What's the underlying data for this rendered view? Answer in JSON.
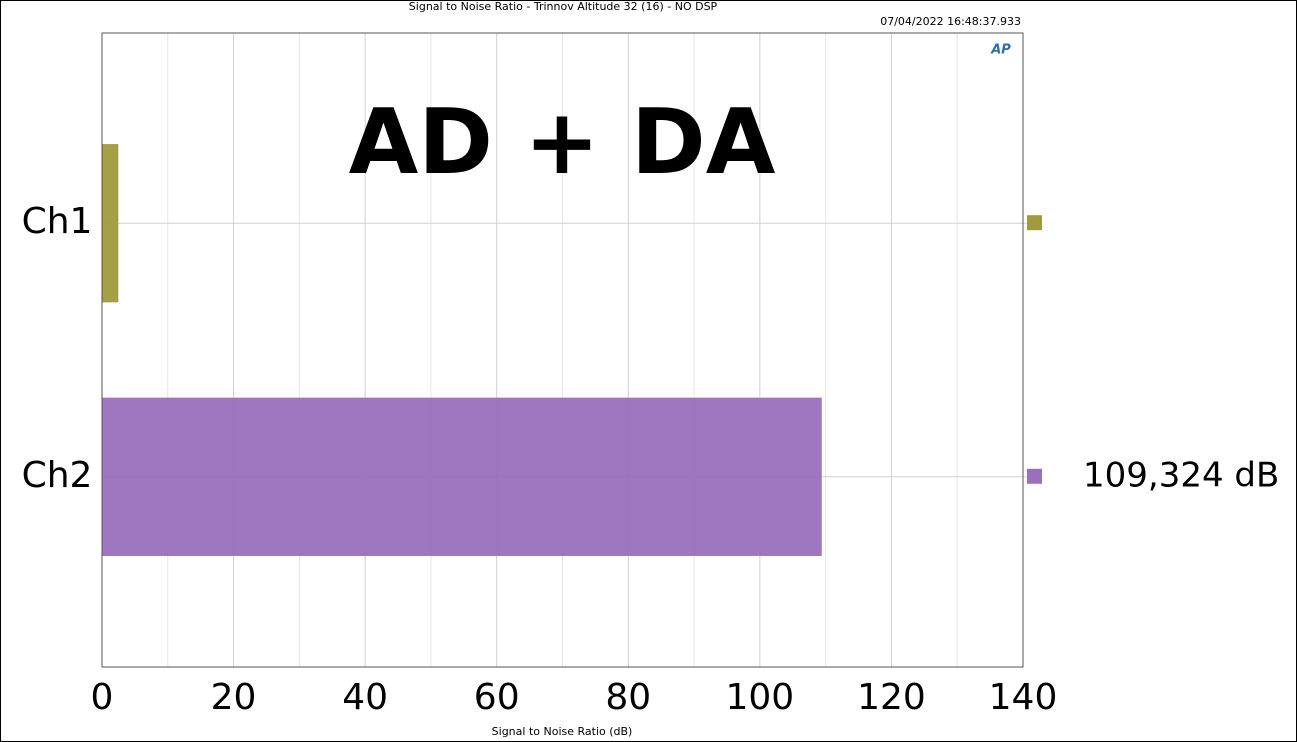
{
  "chart_data": {
    "type": "barh",
    "title": "Signal to Noise Ratio  - Trinnov Altitude 32 (16) - NO  DSP",
    "timestamp": "07/04/2022 16:48:37.933",
    "logo": "AP",
    "annotation": "AD + DA",
    "xlabel": "Signal to Noise Ratio (dB)",
    "categories": [
      "Ch1",
      "Ch2"
    ],
    "values": [
      2.4,
      109.324
    ],
    "value_labels": [
      null,
      "109,324 dB"
    ],
    "colors": [
      "#a09a3c",
      "#9a6fbd"
    ],
    "xlim": [
      0,
      140
    ],
    "xticks": [
      0,
      20,
      40,
      60,
      80,
      100,
      120,
      140
    ],
    "xminorticks": [
      10,
      30,
      50,
      70,
      90,
      110,
      130
    ],
    "grid": true
  }
}
